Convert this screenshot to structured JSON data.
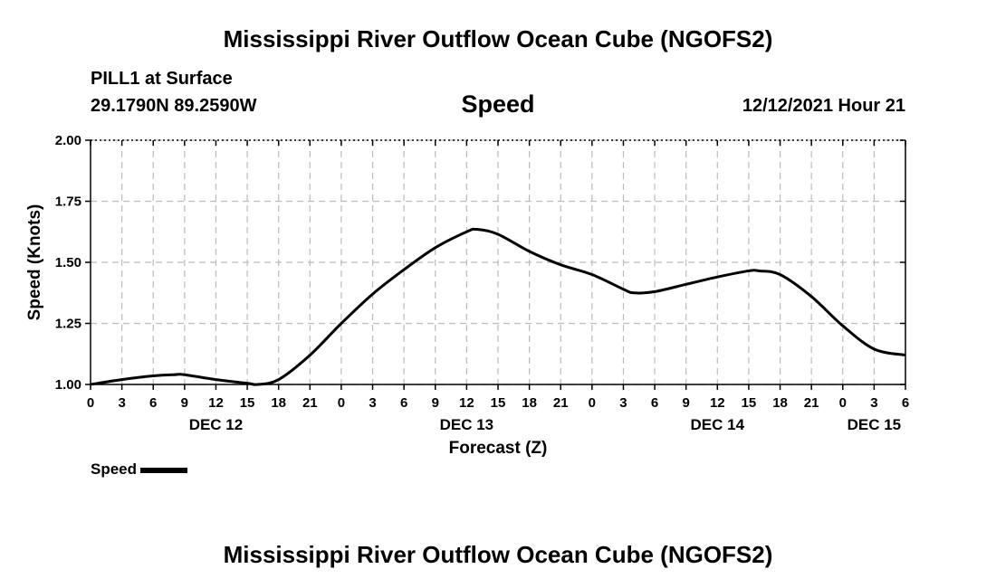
{
  "header": {
    "title": "Mississippi River Outflow Ocean Cube (NGOFS2)",
    "station": "PILL1 at Surface",
    "coords": "29.1790N  89.2590W",
    "timestamp": "12/12/2021 Hour 21",
    "footer_title": "Mississippi River Outflow Ocean Cube (NGOFS2)"
  },
  "colors": {
    "line": "#000000",
    "grid": "#bbbbbb"
  },
  "chart_data": {
    "type": "line",
    "title": "Speed",
    "xlabel": "Forecast (Z)",
    "ylabel": "Speed (Knots)",
    "ylim": [
      1.0,
      2.0
    ],
    "xlim_hours": [
      0,
      78
    ],
    "grid": true,
    "legend_position": "bottom-left",
    "y_ticks": [
      "1.00",
      "1.25",
      "1.50",
      "1.75",
      "2.00"
    ],
    "x_tick_labels": [
      "0",
      "3",
      "6",
      "9",
      "12",
      "15",
      "18",
      "21",
      "0",
      "3",
      "6",
      "9",
      "12",
      "15",
      "18",
      "21",
      "0",
      "3",
      "6",
      "9",
      "12",
      "15",
      "18",
      "21",
      "0",
      "3",
      "6"
    ],
    "day_labels": [
      {
        "label": "DEC 12",
        "hour": 12
      },
      {
        "label": "DEC 13",
        "hour": 36
      },
      {
        "label": "DEC 14",
        "hour": 60
      },
      {
        "label": "DEC 15",
        "hour": 75
      }
    ],
    "series": [
      {
        "name": "Speed",
        "x": [
          0,
          3,
          6,
          8,
          9,
          12,
          15,
          16,
          18,
          21,
          24,
          27,
          30,
          33,
          36,
          37,
          39,
          42,
          45,
          48,
          51,
          52,
          54,
          57,
          60,
          63,
          64,
          66,
          69,
          72,
          75,
          78
        ],
        "values": [
          1.0,
          1.02,
          1.035,
          1.04,
          1.04,
          1.02,
          1.005,
          1.0,
          1.02,
          1.12,
          1.25,
          1.37,
          1.47,
          1.56,
          1.625,
          1.635,
          1.615,
          1.545,
          1.49,
          1.45,
          1.39,
          1.375,
          1.38,
          1.41,
          1.44,
          1.465,
          1.465,
          1.45,
          1.36,
          1.24,
          1.145,
          1.12
        ]
      }
    ]
  },
  "legend": {
    "label": "Speed"
  }
}
